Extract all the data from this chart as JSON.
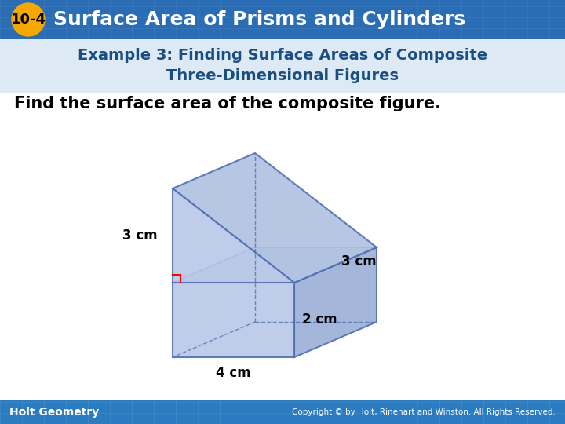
{
  "header_bg_color": "#2a6db5",
  "header_text": "Surface Area of Prisms and Cylinders",
  "header_badge_color": "#f5a800",
  "header_badge_text": "10-4",
  "example_text_line1": "Example 3: Finding Surface Areas of Composite",
  "example_text_line2": "Three-Dimensional Figures",
  "body_text": "Find the surface area of the composite figure.",
  "footer_bg_color": "#2a7bbf",
  "footer_left": "Holt Geometry",
  "footer_right": "Copyright © by Holt, Rinehart and Winston. All Rights Reserved.",
  "bg_color": "#ffffff",
  "example_bg_color": "#ddeaf5",
  "example_color": "#1a4e80",
  "body_color": "#000000",
  "label_3cm_left": "3 cm",
  "label_3cm_right": "3 cm",
  "label_2cm": "2 cm",
  "label_4cm": "4 cm",
  "fig_face_color": "#b8c8e8",
  "fig_face_alpha": 0.85,
  "fig_edge_color": "#5070b0",
  "fig_edge_lw": 1.5,
  "fig_shadow_color": "#d0d8ee"
}
